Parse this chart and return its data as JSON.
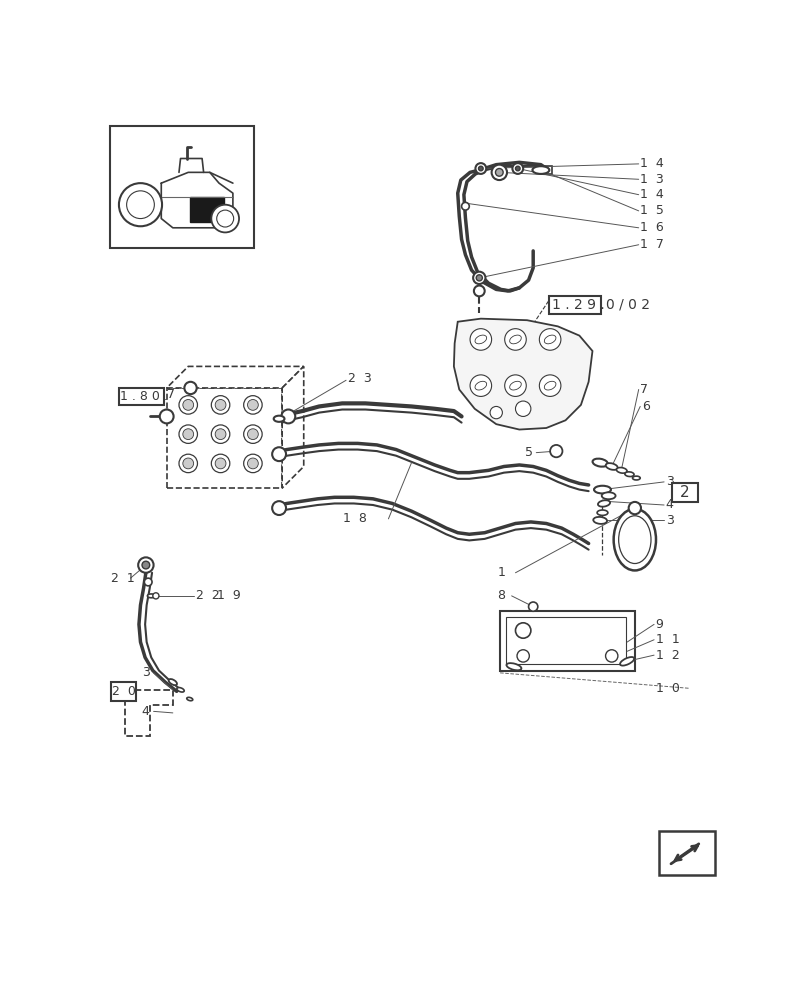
{
  "bg_color": "#ffffff",
  "lc": "#3a3a3a",
  "fig_width": 8.12,
  "fig_height": 10.0,
  "dpi": 100
}
